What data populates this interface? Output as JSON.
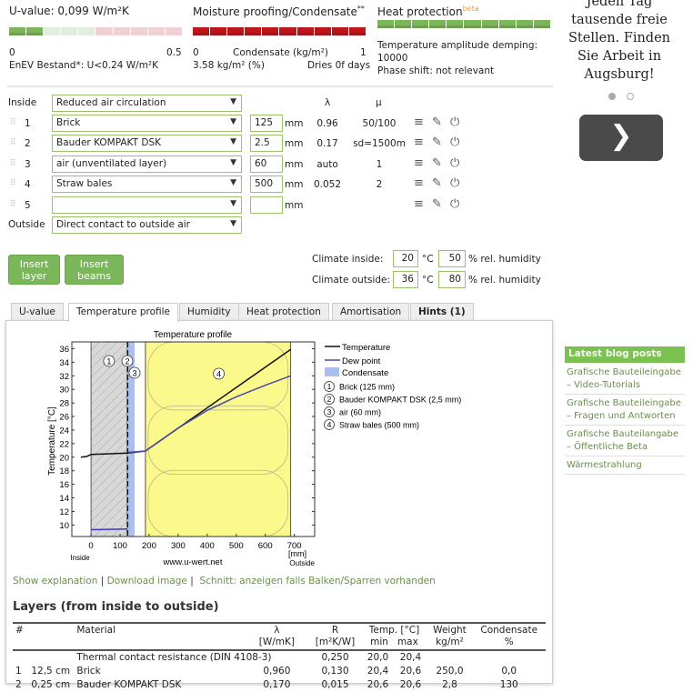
{
  "summary": {
    "uvalue": {
      "title": "U-value: 0,099 W/m²K",
      "min": "0",
      "max": "0.5",
      "note": "EnEV Bestand*: U<0.24 W/m²K",
      "fill_fraction": 0.2
    },
    "moisture": {
      "title": "Moisture proofing/Condensate",
      "sup": "**",
      "min": "0",
      "axis": "Condensate (kg/m²)",
      "max": "1",
      "value": "3.58 kg/m² (%)",
      "dries": "Dries 0f days",
      "fill_fraction": 1.0
    },
    "heat": {
      "title": "Heat protection",
      "sup": "beta",
      "line1": "Temperature amplitude demping:",
      "line2": "10000",
      "line3": "Phase shift: not relevant",
      "fill_fraction": 1.0
    },
    "colors": {
      "green": "#7cb65a",
      "red": "#c0141b",
      "pale_green": "#dfeedd",
      "pale_red": "#f2d0d2"
    }
  },
  "layers_form": {
    "inside_label": "Inside",
    "inside_value": "Reduced air circulation",
    "col_lambda": "λ",
    "col_mu": "μ",
    "unit": "mm",
    "rows": [
      {
        "n": "1",
        "material": "Brick",
        "thickness": "125",
        "lambda": "0.96",
        "mu": "50/100"
      },
      {
        "n": "2",
        "material": "Bauder KOMPAKT DSK",
        "thickness": "2.5",
        "lambda": "0.17",
        "mu": "sd=1500m"
      },
      {
        "n": "3",
        "material": "air (unventilated layer)",
        "thickness": "60",
        "lambda": "auto",
        "mu": "1"
      },
      {
        "n": "4",
        "material": "Straw bales",
        "thickness": "500",
        "lambda": "0.052",
        "mu": "2"
      },
      {
        "n": "5",
        "material": "",
        "thickness": "",
        "lambda": "",
        "mu": ""
      }
    ],
    "outside_label": "Outside",
    "outside_value": "Direct contact to outside air",
    "icons": [
      "menu-icon",
      "pencil-icon",
      "power-icon"
    ]
  },
  "buttons": {
    "insert_layer": "Insert layer",
    "insert_beams": "Insert beams"
  },
  "climate": {
    "inside_label": "Climate inside:",
    "inside_temp": "20",
    "inside_rh": "50",
    "outside_label": "Climate outside:",
    "outside_temp": "36",
    "outside_rh": "80",
    "temp_unit": "°C",
    "rh_unit": "% rel. humidity"
  },
  "tabs": [
    "U-value",
    "Temperature profile",
    "Humidity",
    "Heat protection",
    "Amortisation",
    "Hints (1)"
  ],
  "chart_data": {
    "type": "line",
    "title": "Temperature profile",
    "ylabel": "Temperature [°C]",
    "xlabel": "[mm]",
    "x_left_label": "Inside",
    "x_right_label": "Outside",
    "watermark": "www.u-wert.net",
    "xlim": [
      -66,
      770
    ],
    "ylim": [
      8.3,
      37
    ],
    "xticks": [
      0,
      100,
      200,
      300,
      400,
      500,
      600,
      700
    ],
    "yticks": [
      10,
      12,
      14,
      16,
      18,
      20,
      22,
      24,
      26,
      28,
      30,
      32,
      34,
      36
    ],
    "layers": [
      {
        "id": "1",
        "name": "Brick (125 mm)",
        "from": 0,
        "to": 125,
        "color": "#d8d8d8"
      },
      {
        "id": "2",
        "name": "Bauder KOMPAKT DSK (2,5 mm)",
        "from": 125,
        "to": 127.5,
        "color": "#ffffff"
      },
      {
        "id": "3",
        "name": "air (60 mm)",
        "from": 127.5,
        "to": 187.5,
        "color": "#ffffff"
      },
      {
        "id": "4",
        "name": "Straw bales (500 mm)",
        "from": 187.5,
        "to": 687.5,
        "color": "#fbf88c"
      }
    ],
    "condensate_zone": [
      125,
      150
    ],
    "series": [
      {
        "name": "Temperature",
        "color": "#111111",
        "x": [
          -35,
          -15,
          0,
          125,
          187.5,
          687.5
        ],
        "y": [
          20.0,
          20.1,
          20.4,
          20.6,
          20.9,
          35.9
        ]
      },
      {
        "name": "Dew point",
        "color": "#4a4aa8",
        "x": [
          127.5,
          187.5,
          300,
          400,
          500,
          600,
          687.5
        ],
        "y": [
          20.7,
          20.9,
          24.3,
          26.9,
          28.9,
          30.6,
          32.0
        ]
      },
      {
        "name": "Dew point",
        "color": "#3a3ad0",
        "x": [
          0,
          125
        ],
        "y": [
          9.3,
          9.4
        ]
      }
    ],
    "legend": {
      "temperature": "Temperature",
      "dew": "Dew point",
      "condensate": "Condensate",
      "condensate_color": "#a9bff2"
    }
  },
  "links": {
    "explain": "Show explanation",
    "download": "Download image",
    "sep": "|",
    "schnitt": "Schnitt: anzeigen falls Balken/Sparren vorhanden"
  },
  "table": {
    "title": "Layers (from inside to outside)",
    "headers": [
      "#",
      "Material",
      "λ",
      "R",
      "Temp. [°C]",
      "Weight",
      "Condensate"
    ],
    "subheaders": [
      "",
      "",
      "[W/mK]",
      "[m²K/W]",
      "min",
      "max",
      "kg/m²",
      "%"
    ],
    "rows": [
      [
        "",
        "",
        "Thermal contact resistance (DIN 4108-3)",
        "",
        "0,250",
        "20,0",
        "20,4",
        "",
        ""
      ],
      [
        "1",
        "12,5 cm",
        "Brick",
        "0,960",
        "0,130",
        "20,4",
        "20,6",
        "250,0",
        "0,0"
      ],
      [
        "2",
        "0,25 cm",
        "Bauder KOMPAKT DSK",
        "0,170",
        "0,015",
        "20,6",
        "20,6",
        "2,8",
        "130"
      ]
    ]
  },
  "ad": {
    "lines": [
      "Jeden Tag",
      "tausende freie",
      "Stellen. Finden",
      "Sie Arbeit in",
      "Augsburg!"
    ],
    "next_icon": "chevron-right-icon"
  },
  "blog": {
    "title": "Latest blog posts",
    "items": [
      "Grafische Bauteileingabe – Video-Tutorials",
      "Grafische Bauteileingabe – Fragen und Antworten",
      "Grafische Bauteilangabe – Öffentliche Beta",
      "Wärmestrahlung"
    ]
  }
}
